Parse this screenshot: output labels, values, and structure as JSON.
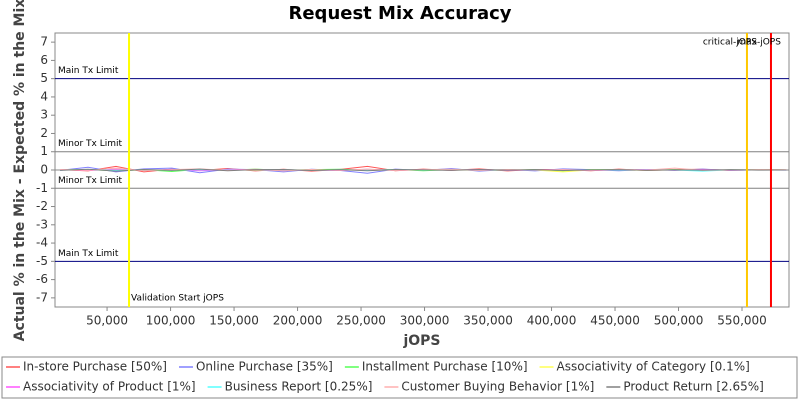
{
  "chart_data": {
    "type": "line",
    "title": "Request Mix Accuracy",
    "x_label": "jOPS",
    "y_label": "Actual % in the Mix - Expected % in the Mix",
    "x": [
      13000,
      35000,
      57000,
      79000,
      101000,
      123000,
      145000,
      167000,
      189000,
      211000,
      233000,
      255000,
      277000,
      299000,
      321000,
      343000,
      365000,
      387000,
      409000,
      431000,
      453000,
      475000,
      497000,
      519000,
      541000,
      563000,
      585000
    ],
    "series": [
      {
        "name": "In-store Purchase [50%]",
        "color": "#ff5555",
        "values": [
          0.02,
          -0.05,
          0.2,
          -0.1,
          0.05,
          -0.03,
          0.08,
          -0.05,
          0.04,
          -0.06,
          0.03,
          0.2,
          -0.04,
          0.05,
          -0.02,
          0.06,
          -0.05,
          0.03,
          0.02,
          -0.04,
          0.05,
          -0.03,
          0.02,
          0.04,
          -0.03,
          0.02,
          0.01
        ]
      },
      {
        "name": "Online Purchase [35%]",
        "color": "#8080ff",
        "values": [
          -0.02,
          0.15,
          -0.1,
          0.06,
          0.1,
          -0.15,
          0.05,
          0.02,
          -0.1,
          0.04,
          -0.02,
          -0.18,
          0.05,
          -0.03,
          0.08,
          -0.06,
          0.03,
          -0.05,
          0.06,
          0.02,
          -0.04,
          0.03,
          -0.02,
          0.05,
          -0.02,
          0.01,
          -0.01
        ]
      },
      {
        "name": "Installment Purchase [10%]",
        "color": "#55ff55",
        "values": [
          0.01,
          0.03,
          -0.05,
          0.02,
          -0.08,
          0.04,
          -0.02,
          0.05,
          -0.03,
          0.02,
          0.04,
          -0.02,
          0.03,
          -0.04,
          0.02,
          0.01,
          -0.02,
          0.03,
          -0.05,
          0.02,
          0.03,
          -0.01,
          0.02,
          -0.03,
          0.01,
          0.02,
          0.0
        ]
      },
      {
        "name": "Associativity of Category [0.1%]",
        "color": "#ffff55",
        "values": [
          0.0,
          0.01,
          0.0,
          -0.01,
          0.01,
          0.0,
          0.01,
          -0.01,
          0.0,
          0.01,
          0.0,
          -0.01,
          0.0,
          0.01,
          0.0,
          -0.01,
          0.01,
          0.0,
          -0.1,
          0.01,
          0.0,
          -0.01,
          0.0,
          0.01,
          0.0,
          0.0,
          0.0
        ]
      },
      {
        "name": "Associativity of Product [1%]",
        "color": "#ff55ff",
        "values": [
          0.02,
          -0.03,
          0.05,
          -0.02,
          0.03,
          -0.04,
          0.02,
          0.03,
          -0.02,
          0.01,
          -0.03,
          0.04,
          -0.02,
          0.02,
          -0.01,
          0.03,
          -0.02,
          0.01,
          0.02,
          -0.03,
          0.01,
          0.02,
          -0.01,
          0.02,
          -0.01,
          0.01,
          0.0
        ]
      },
      {
        "name": "Business Report [0.25%]",
        "color": "#55ffff",
        "values": [
          -0.01,
          0.02,
          -0.02,
          0.01,
          -0.01,
          0.02,
          -0.01,
          0.01,
          0.02,
          -0.02,
          0.01,
          -0.01,
          0.02,
          -0.01,
          0.01,
          0.0,
          0.01,
          -0.01,
          0.01,
          0.0,
          -0.01,
          0.01,
          0.0,
          -0.06,
          0.01,
          0.0,
          0.0
        ]
      },
      {
        "name": "Customer Buying Behavior [1%]",
        "color": "#ffafaf",
        "values": [
          0.03,
          -0.02,
          0.1,
          -0.04,
          0.02,
          0.06,
          -0.03,
          0.04,
          -0.05,
          0.03,
          -0.02,
          0.05,
          -0.03,
          0.02,
          0.04,
          -0.02,
          0.03,
          -0.01,
          0.02,
          -0.02,
          0.03,
          -0.01,
          0.1,
          -0.02,
          0.01,
          0.02,
          0.0
        ]
      },
      {
        "name": "Product Return [2.65%]",
        "color": "#808080",
        "values": [
          -0.02,
          0.04,
          -0.06,
          0.03,
          -0.02,
          0.05,
          -0.04,
          0.02,
          0.03,
          -0.03,
          0.02,
          -0.04,
          0.03,
          0.01,
          -0.02,
          0.03,
          -0.01,
          0.02,
          -0.03,
          0.01,
          0.02,
          -0.02,
          0.01,
          -0.01,
          0.02,
          -0.01,
          0.0
        ]
      }
    ],
    "hlines": [
      {
        "y": 5,
        "label": "Main Tx Limit",
        "color": "#000080"
      },
      {
        "y": 1,
        "label": "Minor Tx Limit",
        "color": "#808080"
      },
      {
        "y": -1,
        "label": "Minor Tx Limit",
        "color": "#808080"
      },
      {
        "y": -5,
        "label": "Main Tx Limit",
        "color": "#000080"
      }
    ],
    "vlines": [
      {
        "x": 67300,
        "label": "Validation Start jOPS",
        "color": "#ffff00"
      },
      {
        "x": 553900,
        "label": "critical-jOPS",
        "color": "#ffc800"
      },
      {
        "x": 572800,
        "label": "max-jOPS",
        "color": "#ff0000"
      }
    ],
    "xlim": [
      9000,
      587000
    ],
    "ylim": [
      -7.5,
      7.5
    ],
    "xticks": [
      {
        "value": 50000,
        "label": "50,000"
      },
      {
        "value": 100000,
        "label": "100,000"
      },
      {
        "value": 150000,
        "label": "150,000"
      },
      {
        "value": 200000,
        "label": "200,000"
      },
      {
        "value": 250000,
        "label": "250,000"
      },
      {
        "value": 300000,
        "label": "300,000"
      },
      {
        "value": 350000,
        "label": "350,000"
      },
      {
        "value": 400000,
        "label": "400,000"
      },
      {
        "value": 450000,
        "label": "450,000"
      },
      {
        "value": 500000,
        "label": "500,000"
      },
      {
        "value": 550000,
        "label": "550,000"
      }
    ],
    "yticks": [
      -7,
      -6,
      -5,
      -4,
      -3,
      -2,
      -1,
      0,
      1,
      2,
      3,
      4,
      5,
      6,
      7
    ],
    "grid": false,
    "legend": "bottom"
  }
}
